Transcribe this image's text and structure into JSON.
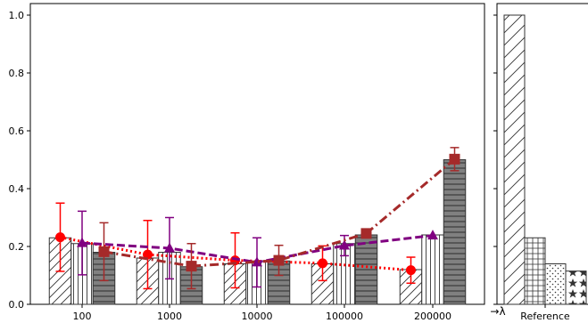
{
  "chart_data": [
    {
      "type": "bar",
      "subtype": "grouped bar with overlaid line series and error bars",
      "categories": [
        "100",
        "1000",
        "10000",
        "100000",
        "200000"
      ],
      "xlabel": "→λ",
      "ylabel": "",
      "ylim": [
        0,
        1.04
      ],
      "yticks": [
        "0.0",
        "0.2",
        "0.4",
        "0.6",
        "0.8",
        "1.0"
      ],
      "grid": false,
      "bar_series": [
        {
          "hatch": "diagonal",
          "fill": "#ffffff",
          "values": [
            0.23,
            0.16,
            0.14,
            0.14,
            0.12
          ]
        },
        {
          "hatch": "vertical",
          "fill": "#ffffff",
          "values": [
            0.21,
            0.18,
            0.15,
            0.21,
            0.24
          ]
        },
        {
          "hatch": "horizontal",
          "fill": "#808080",
          "values": [
            0.18,
            0.13,
            0.15,
            0.24,
            0.5
          ]
        }
      ],
      "line_series": [
        {
          "color": "#ff0000",
          "style": "dotted",
          "marker": "circle",
          "values": [
            0.232,
            0.172,
            0.152,
            0.142,
            0.118
          ],
          "err": [
            0.118,
            0.118,
            0.095,
            0.06,
            0.045
          ]
        },
        {
          "color": "#800080",
          "style": "dashed",
          "marker": "triangle",
          "values": [
            0.212,
            0.194,
            0.145,
            0.203,
            0.238
          ],
          "err": [
            0.11,
            0.106,
            0.085,
            0.035,
            0.0
          ]
        },
        {
          "color": "#a52a2a",
          "style": "dash-dot",
          "marker": "square",
          "values": [
            0.182,
            0.132,
            0.152,
            0.245,
            0.502
          ],
          "err": [
            0.1,
            0.078,
            0.052,
            0.0,
            0.04
          ]
        }
      ]
    },
    {
      "type": "bar",
      "categories": [
        "Reference"
      ],
      "xlabel": "",
      "ylim": [
        0,
        1.04
      ],
      "series": [
        {
          "hatch": "diagonal",
          "value": 1.0
        },
        {
          "hatch": "grid",
          "value": 0.23
        },
        {
          "hatch": "dots",
          "value": 0.14
        },
        {
          "hatch": "stars",
          "value": 0.115
        }
      ]
    }
  ]
}
